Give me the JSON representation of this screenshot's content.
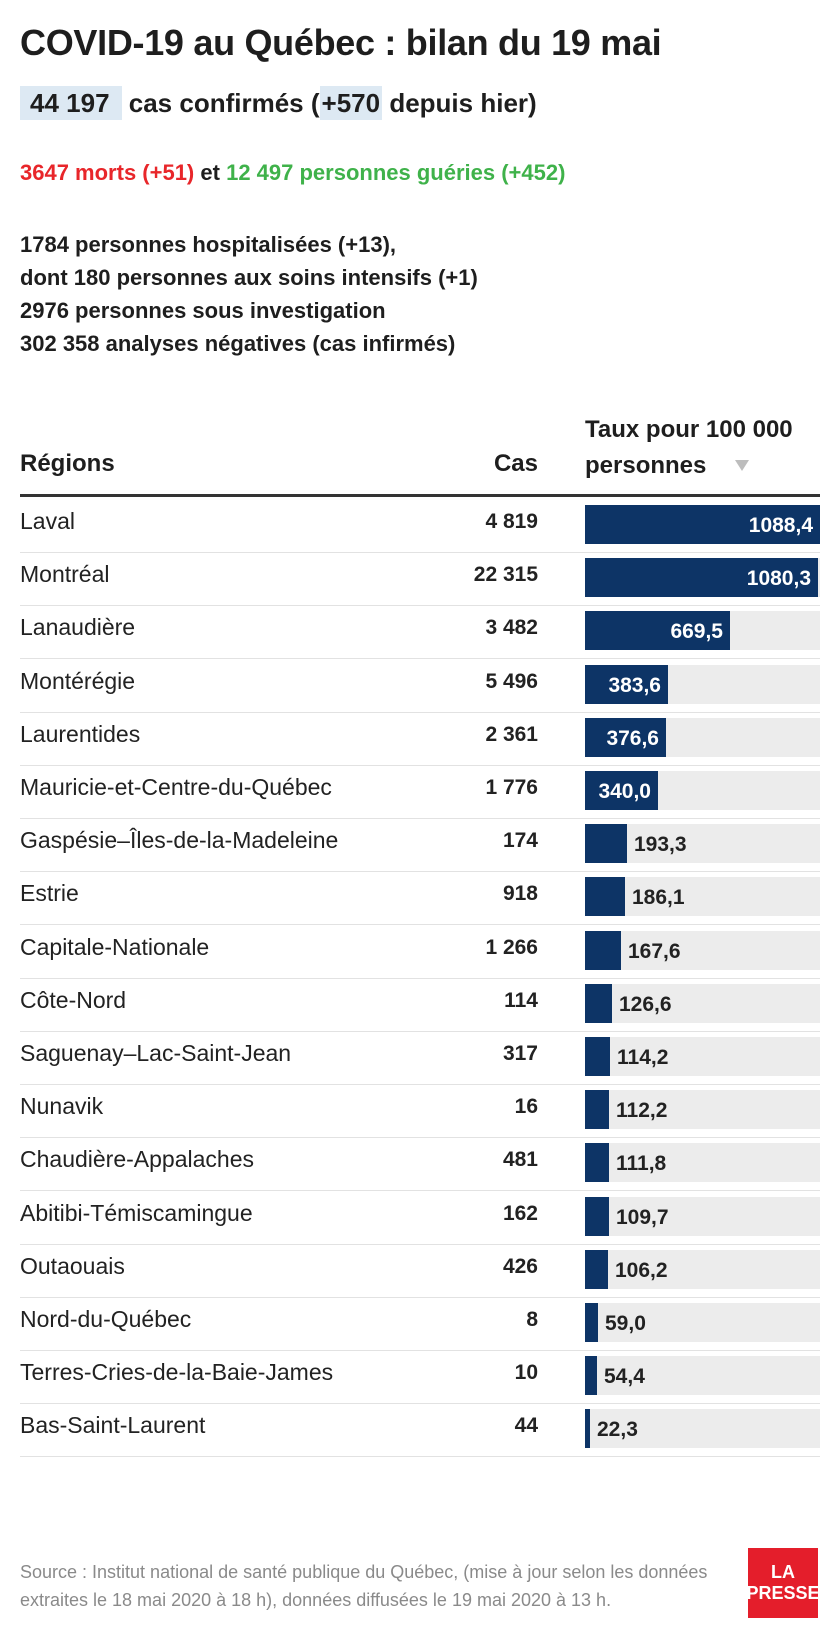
{
  "header": {
    "title": "COVID-19 au Québec : bilan du 19 mai",
    "confirmed": "44 197",
    "confirmed_label": "cas confirmés (",
    "confirmed_delta": "+570",
    "confirmed_suffix": "depuis hier)",
    "deaths": "3647 morts (+51)",
    "connector": "et",
    "recovered": "12 497 personnes guéries (+452)",
    "stats": [
      "1784 personnes hospitalisées (+13),",
      "dont 180 personnes aux soins intensifs (+1)",
      "2976 personnes sous investigation",
      "302 358 analyses négatives (cas infirmés)"
    ]
  },
  "table": {
    "col_region": "Régions",
    "col_cases": "Cas",
    "col_rate_line1": "Taux pour 100 000",
    "col_rate_line2": "personnes"
  },
  "colors": {
    "bar": "#0d3466",
    "track": "#ececec",
    "deaths": "#e8262a",
    "recovered": "#3fb24a",
    "highlight": "#dde9f3",
    "logo": "#e41e2b"
  },
  "chart_data": {
    "type": "bar",
    "orientation": "horizontal",
    "xlim": [
      0,
      1088.4
    ],
    "rows": [
      {
        "region": "Laval",
        "cases": "4 819",
        "rate": 1088.4,
        "rate_label": "1088,4"
      },
      {
        "region": "Montréal",
        "cases": "22 315",
        "rate": 1080.3,
        "rate_label": "1080,3"
      },
      {
        "region": "Lanaudière",
        "cases": "3 482",
        "rate": 669.5,
        "rate_label": "669,5"
      },
      {
        "region": "Montérégie",
        "cases": "5 496",
        "rate": 383.6,
        "rate_label": "383,6"
      },
      {
        "region": "Laurentides",
        "cases": "2 361",
        "rate": 376.6,
        "rate_label": "376,6"
      },
      {
        "region": "Mauricie-et-Centre-du-Québec",
        "cases": "1 776",
        "rate": 340.0,
        "rate_label": "340,0"
      },
      {
        "region": "Gaspésie–Îles-de-la-Madeleine",
        "cases": "174",
        "rate": 193.3,
        "rate_label": "193,3"
      },
      {
        "region": "Estrie",
        "cases": "918",
        "rate": 186.1,
        "rate_label": "186,1"
      },
      {
        "region": "Capitale-Nationale",
        "cases": "1 266",
        "rate": 167.6,
        "rate_label": "167,6"
      },
      {
        "region": "Côte-Nord",
        "cases": "114",
        "rate": 126.6,
        "rate_label": "126,6"
      },
      {
        "region": "Saguenay–Lac-Saint-Jean",
        "cases": "317",
        "rate": 114.2,
        "rate_label": "114,2"
      },
      {
        "region": "Nunavik",
        "cases": "16",
        "rate": 112.2,
        "rate_label": "112,2"
      },
      {
        "region": "Chaudière-Appalaches",
        "cases": "481",
        "rate": 111.8,
        "rate_label": "111,8"
      },
      {
        "region": "Abitibi-Témiscamingue",
        "cases": "162",
        "rate": 109.7,
        "rate_label": "109,7"
      },
      {
        "region": "Outaouais",
        "cases": "426",
        "rate": 106.2,
        "rate_label": "106,2"
      },
      {
        "region": "Nord-du-Québec",
        "cases": "8",
        "rate": 59.0,
        "rate_label": "59,0"
      },
      {
        "region": "Terres-Cries-de-la-Baie-James",
        "cases": "10",
        "rate": 54.4,
        "rate_label": "54,4"
      },
      {
        "region": "Bas-Saint-Laurent",
        "cases": "44",
        "rate": 22.3,
        "rate_label": "22,3"
      }
    ]
  },
  "footer": {
    "source_line1": "Source : Institut national de santé publique du Québec, (mise à jour selon les données",
    "source_line2": "extraites le 18 mai 2020 à 18 h), données diffusées le 19 mai 2020 à 13 h.",
    "logo_line1": "LA",
    "logo_line2": "PRESSE"
  }
}
